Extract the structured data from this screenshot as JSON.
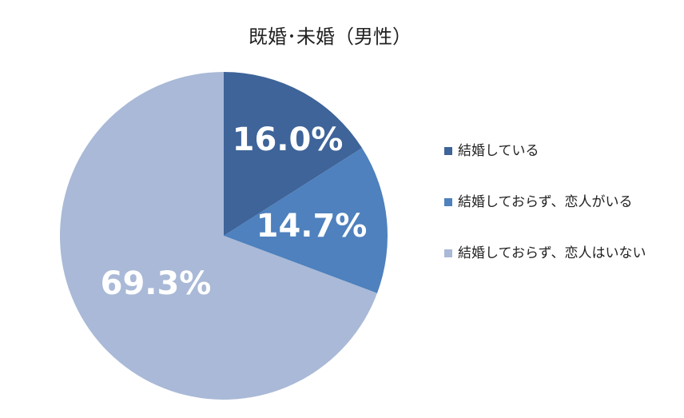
{
  "chart_data": {
    "type": "pie",
    "title": "既婚･未婚（男性）",
    "slices": [
      {
        "label": "結婚している",
        "value": 16.0,
        "value_label": "16.0%",
        "color": "#3e6499"
      },
      {
        "label": "結婚しておらず、恋人がいる",
        "value": 14.7,
        "value_label": "14.7%",
        "color": "#4e81bd"
      },
      {
        "label": "結婚しておらず、恋人はいない",
        "value": 69.3,
        "value_label": "69.3%",
        "color": "#a9b9d7"
      }
    ],
    "legend_position": "right",
    "start_angle": "12 o'clock",
    "direction": "clockwise"
  }
}
